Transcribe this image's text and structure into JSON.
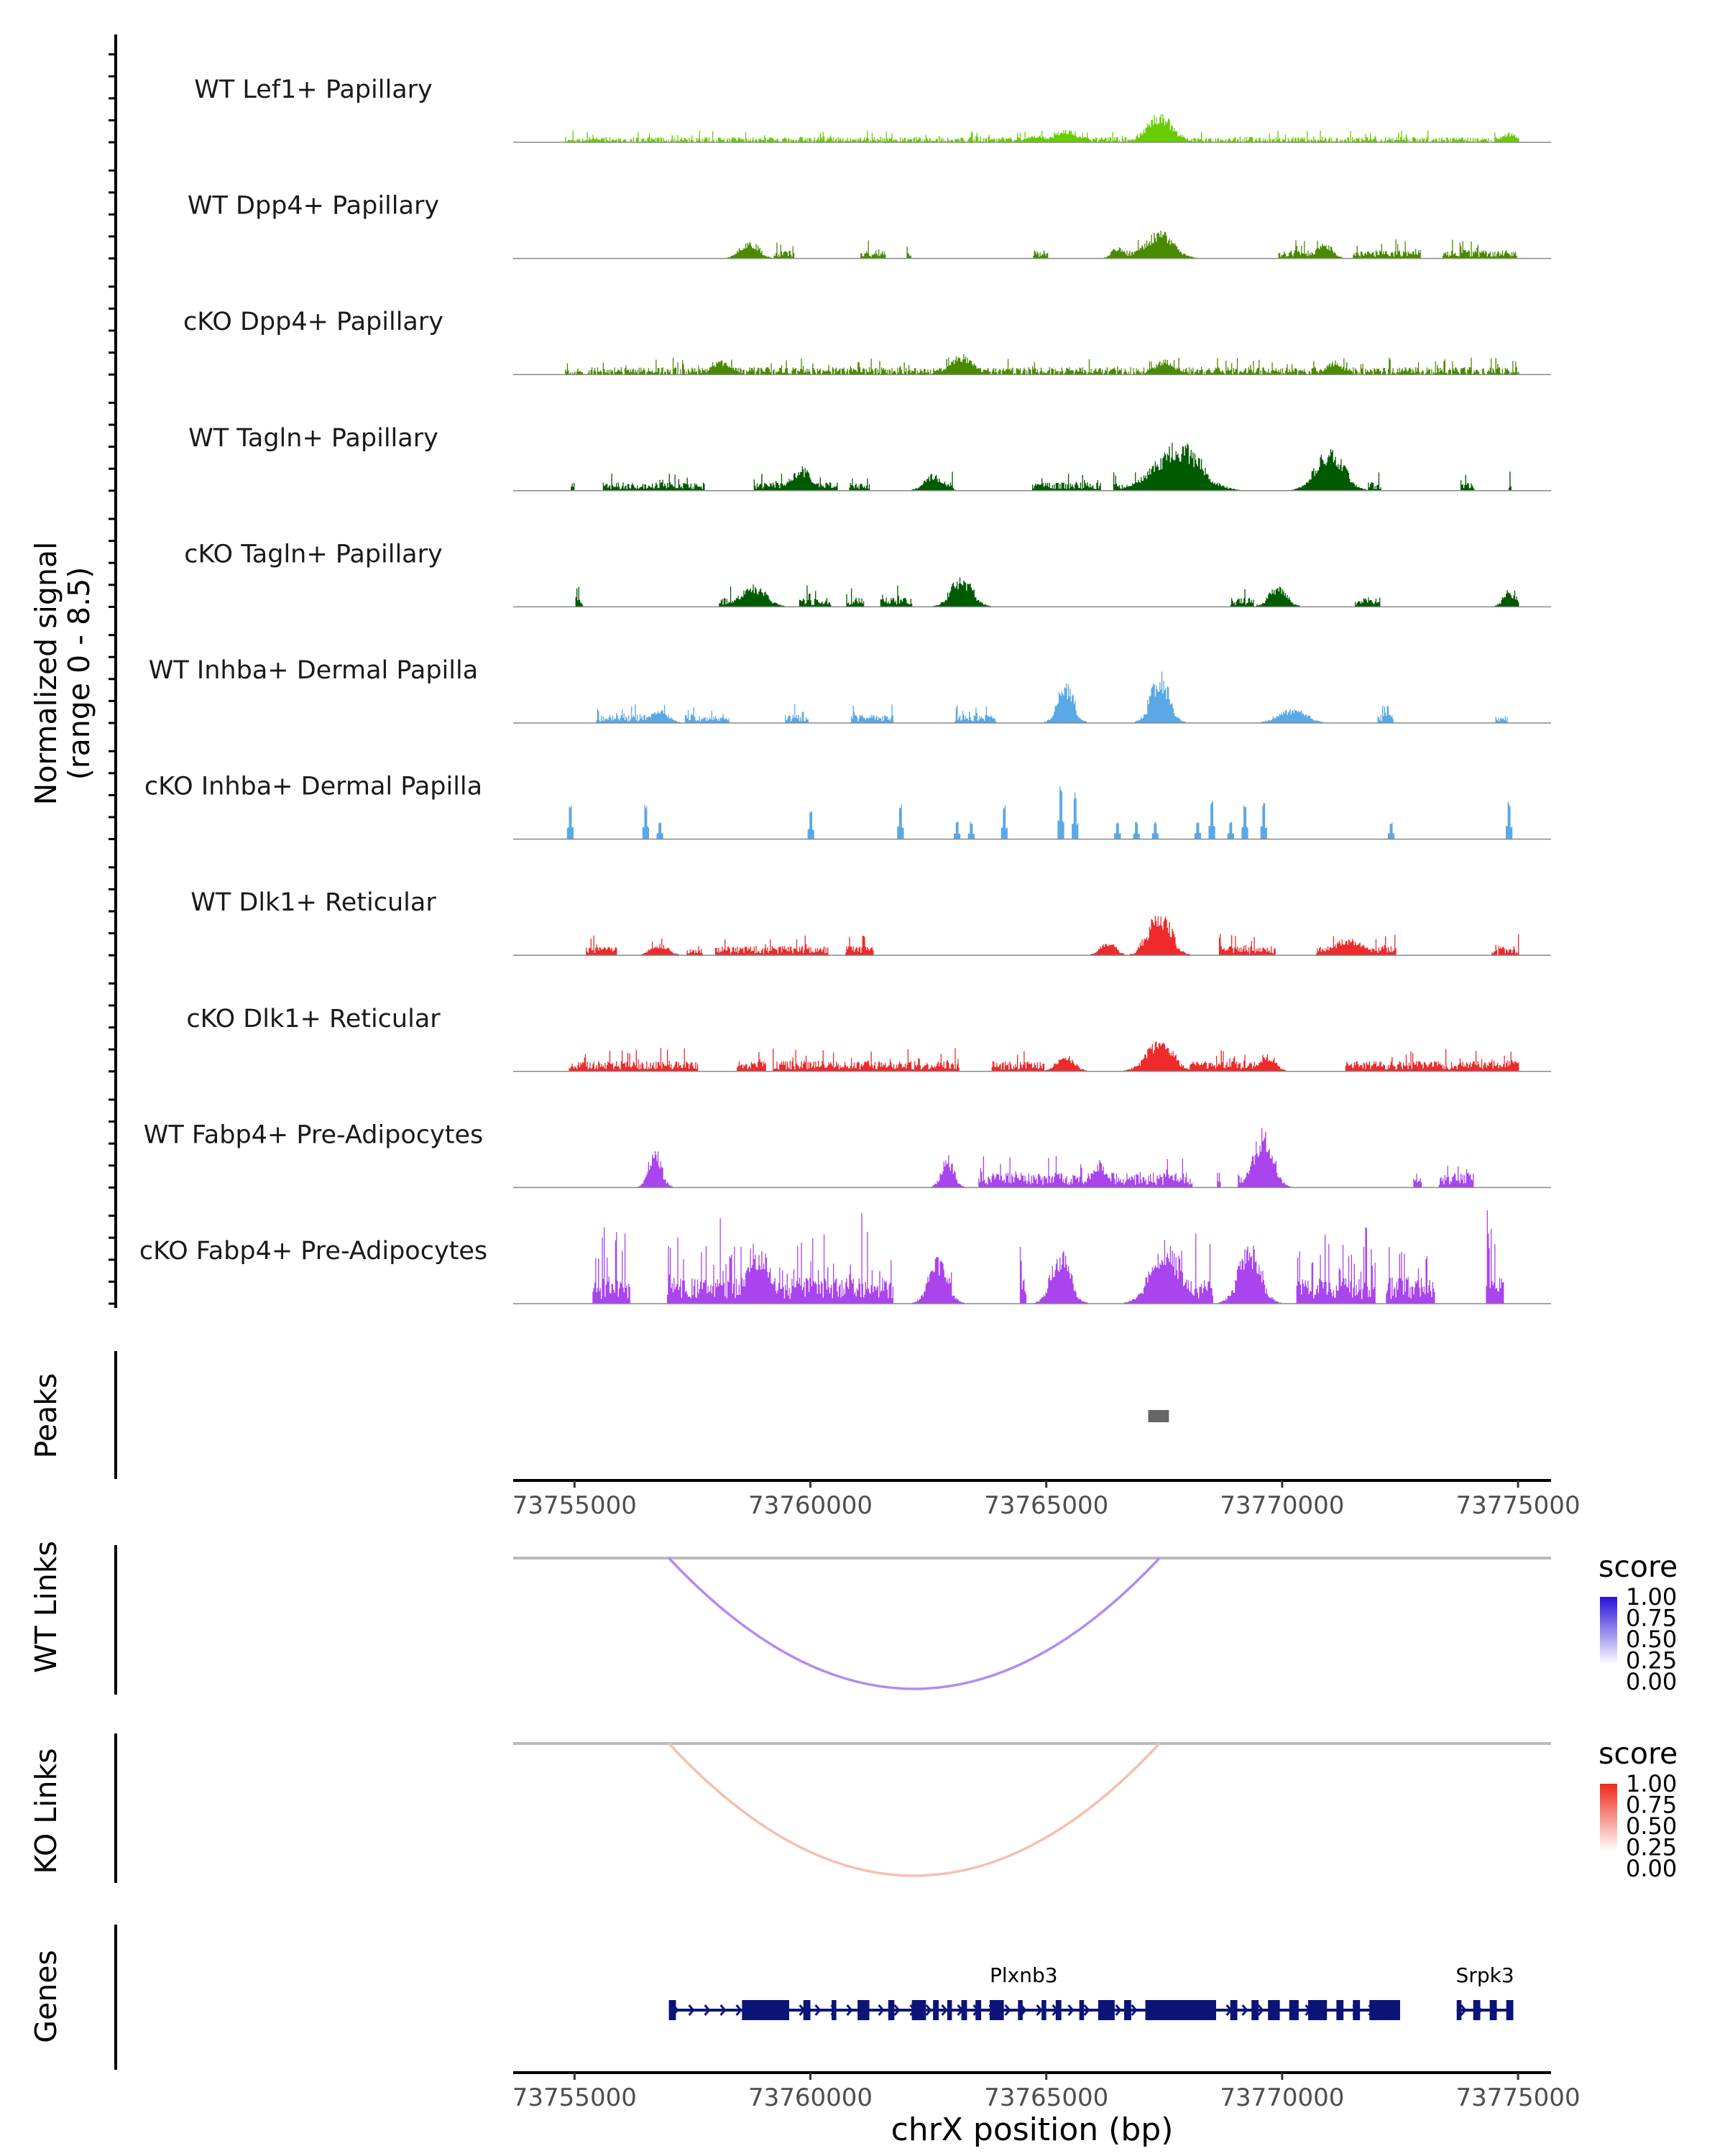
{
  "chart_data": {
    "type": "area",
    "genome_region": {
      "chromosome": "chrX",
      "start": 73753700,
      "end": 73775700
    },
    "coverage": {
      "ylabel": [
        "Normalized signal",
        "(range 0 - 8.5)"
      ],
      "ylim": [
        0,
        8.5
      ],
      "tracks": [
        {
          "name": "WT Lef1+ Papillary",
          "color": "#66cc00",
          "style": "continuous",
          "density": 0.8,
          "base_level": 0.28,
          "seed": 11,
          "peaks": [
            [
              73767400,
              2.7,
              0.8
            ],
            [
              73765400,
              1.2,
              0.7
            ],
            [
              73774800,
              0.9,
              0.5
            ],
            [
              73764800,
              0.7,
              0.6
            ]
          ]
        },
        {
          "name": "WT Dpp4+ Papillary",
          "color": "#4a8a00",
          "style": "sparse",
          "density": 0.38,
          "base_level": 0.45,
          "seed": 23,
          "peaks": [
            [
              73767400,
              2.6,
              0.9
            ],
            [
              73758700,
              1.7,
              0.6
            ],
            [
              73770900,
              1.5,
              0.5
            ],
            [
              73766500,
              1.1,
              0.4
            ]
          ]
        },
        {
          "name": "cKO Dpp4+ Papillary",
          "color": "#4a8a00",
          "style": "continuous",
          "density": 0.85,
          "base_level": 0.4,
          "seed": 37,
          "peaks": [
            [
              73763200,
              1.9,
              0.7
            ],
            [
              73758100,
              1.3,
              0.6
            ],
            [
              73771100,
              1.3,
              0.5
            ],
            [
              73767500,
              1.4,
              0.6
            ]
          ]
        },
        {
          "name": "WT Tagln+ Papillary",
          "color": "#005a00",
          "style": "sparse",
          "density": 0.42,
          "base_level": 0.45,
          "seed": 41,
          "peaks": [
            [
              73767800,
              4.6,
              1.4
            ],
            [
              73771000,
              3.9,
              0.9
            ],
            [
              73759800,
              2.3,
              0.6
            ],
            [
              73762600,
              1.6,
              0.6
            ]
          ]
        },
        {
          "name": "cKO Tagln+ Papillary",
          "color": "#005a00",
          "style": "sparse",
          "density": 0.48,
          "base_level": 0.5,
          "seed": 53,
          "peaks": [
            [
              73763200,
              2.9,
              0.7
            ],
            [
              73758800,
              2.1,
              0.8
            ],
            [
              73769900,
              1.9,
              0.6
            ],
            [
              73774800,
              1.6,
              0.4
            ]
          ]
        },
        {
          "name": "WT Inhba+ Dermal Papilla",
          "color": "#5aa8e6",
          "style": "sparse",
          "density": 0.34,
          "base_level": 0.45,
          "seed": 67,
          "peaks": [
            [
              73767400,
              4.8,
              0.6
            ],
            [
              73765400,
              4.0,
              0.5
            ],
            [
              73770200,
              1.4,
              0.9
            ],
            [
              73756800,
              1.2,
              0.6
            ]
          ]
        },
        {
          "name": "cKO Inhba+ Dermal Papilla",
          "color": "#5aa8e6",
          "style": "islands",
          "density": 0.18,
          "base_level": 0.0,
          "seed": 71,
          "islands": [
            [
              73754900,
              3.2
            ],
            [
              73756500,
              3.3
            ],
            [
              73756800,
              1.6
            ],
            [
              73760000,
              2.7
            ],
            [
              73761900,
              3.3
            ],
            [
              73763100,
              1.6
            ],
            [
              73763400,
              1.6
            ],
            [
              73764100,
              3.1
            ],
            [
              73765300,
              5.0
            ],
            [
              73765600,
              4.3
            ],
            [
              73766500,
              1.6
            ],
            [
              73766900,
              1.6
            ],
            [
              73767300,
              1.6
            ],
            [
              73768200,
              1.7
            ],
            [
              73768500,
              3.6
            ],
            [
              73768900,
              1.6
            ],
            [
              73769200,
              3.3
            ],
            [
              73769600,
              3.4
            ],
            [
              73772300,
              1.6
            ],
            [
              73774800,
              3.4
            ]
          ]
        },
        {
          "name": "WT Dlk1+ Reticular",
          "color": "#ee2a2a",
          "style": "sparse",
          "density": 0.5,
          "base_level": 0.5,
          "seed": 83,
          "peaks": [
            [
              73767400,
              4.3,
              0.7
            ],
            [
              73771400,
              1.6,
              0.9
            ],
            [
              73766300,
              1.3,
              0.5
            ],
            [
              73756800,
              1.0,
              0.6
            ]
          ]
        },
        {
          "name": "cKO Dlk1+ Reticular",
          "color": "#ee2a2a",
          "style": "sparse",
          "density": 0.58,
          "base_level": 0.55,
          "seed": 97,
          "peaks": [
            [
              73767400,
              2.9,
              0.9
            ],
            [
              73765400,
              1.5,
              0.6
            ],
            [
              73769700,
              1.6,
              0.5
            ],
            [
              73774900,
              1.2,
              0.4
            ]
          ]
        },
        {
          "name": "WT Fabp4+ Pre-Adipocytes",
          "color": "#aa44ee",
          "style": "sparse",
          "density": 0.3,
          "base_level": 0.8,
          "seed": 103,
          "peaks": [
            [
              73769600,
              5.6,
              0.6
            ],
            [
              73756700,
              4.0,
              0.4
            ],
            [
              73762900,
              3.0,
              0.4
            ],
            [
              73766100,
              2.6,
              0.4
            ]
          ]
        },
        {
          "name": "cKO Fabp4+ Pre-Adipocytes",
          "color": "#aa44ee",
          "style": "dense",
          "density": 0.6,
          "base_level": 1.4,
          "seed": 131,
          "peaks": [
            [
              73767500,
              5.8,
              0.9
            ],
            [
              73769300,
              5.8,
              0.7
            ],
            [
              73758900,
              5.4,
              0.7
            ],
            [
              73765300,
              5.0,
              0.6
            ],
            [
              73762700,
              4.5,
              0.6
            ]
          ]
        }
      ]
    },
    "peaks_track": {
      "label": "Peaks",
      "regions": [
        [
          73767160,
          73767600
        ]
      ],
      "color": "#666666"
    },
    "x_axis_ticks": [
      73755000,
      73760000,
      73765000,
      73770000,
      73775000
    ],
    "links_tracks": [
      {
        "label": "WT Links",
        "start": 73757000,
        "end": 73767400,
        "score": 0.45,
        "color": "#b08cf5",
        "legend": {
          "title": "score",
          "ticks": [
            "1.00",
            "0.75",
            "0.50",
            "0.25",
            "0.00"
          ],
          "color_low": "#ffffff",
          "color_high": "#2a10d8"
        }
      },
      {
        "label": "KO Links",
        "start": 73757000,
        "end": 73767400,
        "score": 0.3,
        "color": "#f6bfae",
        "legend": {
          "title": "score",
          "ticks": [
            "1.00",
            "0.75",
            "0.50",
            "0.25",
            "0.00"
          ],
          "color_low": "#ffffff",
          "color_high": "#ee2a1a"
        }
      }
    ],
    "genes_track": {
      "label": "Genes",
      "color": "#0c1478",
      "genes": [
        {
          "name": "Plxnb3",
          "start": 73757000,
          "end": 73772500,
          "strand": "+",
          "exons": [
            [
              73757000,
              73757150
            ],
            [
              73758550,
              73759550
            ],
            [
              73759850,
              73760000
            ],
            [
              73760450,
              73760550
            ],
            [
              73761000,
              73761250
            ],
            [
              73761650,
              73761780
            ],
            [
              73762150,
              73762450
            ],
            [
              73762600,
              73762720
            ],
            [
              73762900,
              73763000
            ],
            [
              73763200,
              73763320
            ],
            [
              73763500,
              73763620
            ],
            [
              73763800,
              73764100
            ],
            [
              73764400,
              73764500
            ],
            [
              73764900,
              73765000
            ],
            [
              73765200,
              73765320
            ],
            [
              73765700,
              73765800
            ],
            [
              73766100,
              73766450
            ],
            [
              73766650,
              73766800
            ],
            [
              73767100,
              73768600
            ],
            [
              73768900,
              73769050
            ],
            [
              73769350,
              73769500
            ],
            [
              73769700,
              73769950
            ],
            [
              73770150,
              73770350
            ],
            [
              73770550,
              73770950
            ],
            [
              73771150,
              73771300
            ],
            [
              73771500,
              73771650
            ],
            [
              73771850,
              73772500
            ]
          ]
        },
        {
          "name": "Srpk3",
          "start": 73773700,
          "end": 73774900,
          "strand": "+",
          "exons": [
            [
              73773700,
              73773800
            ],
            [
              73774050,
              73774200
            ],
            [
              73774400,
              73774550
            ],
            [
              73774750,
              73774900
            ]
          ]
        }
      ]
    },
    "xlabel": "chrX position (bp)"
  }
}
